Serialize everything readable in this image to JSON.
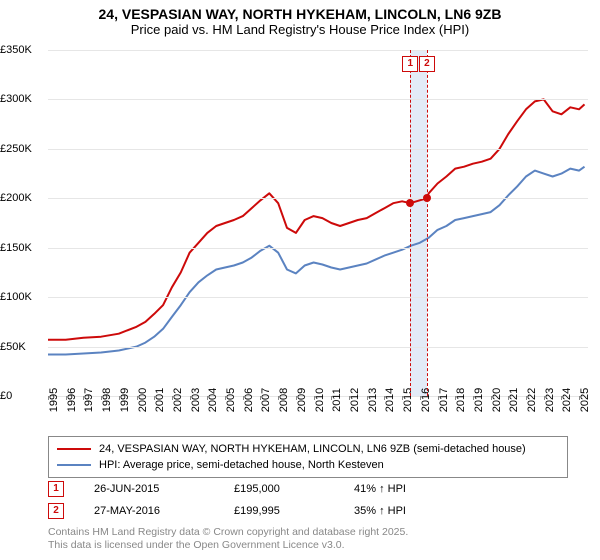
{
  "title": {
    "line1": "24, VESPASIAN WAY, NORTH HYKEHAM, LINCOLN, LN6 9ZB",
    "line2": "Price paid vs. HM Land Registry's House Price Index (HPI)",
    "fontsize_main": 14,
    "fontsize_sub": 13
  },
  "chart": {
    "type": "line",
    "background_color": "#ffffff",
    "grid_color": "#e6e6e6",
    "x": {
      "min": 1995,
      "max": 2025.5,
      "ticks": [
        1995,
        1996,
        1997,
        1998,
        1999,
        2000,
        2001,
        2002,
        2003,
        2004,
        2005,
        2006,
        2007,
        2008,
        2009,
        2010,
        2011,
        2012,
        2013,
        2014,
        2015,
        2016,
        2017,
        2018,
        2019,
        2020,
        2021,
        2022,
        2023,
        2024,
        2025
      ],
      "label_fontsize": 11
    },
    "y": {
      "min": 0,
      "max": 350000,
      "ticks": [
        0,
        50000,
        100000,
        150000,
        200000,
        250000,
        300000,
        350000
      ],
      "tick_labels": [
        "£0",
        "£50K",
        "£100K",
        "£150K",
        "£200K",
        "£250K",
        "£300K",
        "£350K"
      ],
      "label_fontsize": 11
    },
    "series": [
      {
        "id": "price_paid",
        "label": "24, VESPASIAN WAY, NORTH HYKEHAM, LINCOLN, LN6 9ZB (semi-detached house)",
        "color": "#cd0a0a",
        "line_width": 2,
        "xy": [
          [
            1995,
            57000
          ],
          [
            1996,
            57000
          ],
          [
            1997,
            59000
          ],
          [
            1998,
            60000
          ],
          [
            1999,
            63000
          ],
          [
            2000,
            70000
          ],
          [
            2000.5,
            75000
          ],
          [
            2001,
            83000
          ],
          [
            2001.5,
            92000
          ],
          [
            2002,
            110000
          ],
          [
            2002.5,
            125000
          ],
          [
            2003,
            145000
          ],
          [
            2003.5,
            155000
          ],
          [
            2004,
            165000
          ],
          [
            2004.5,
            172000
          ],
          [
            2005,
            175000
          ],
          [
            2005.5,
            178000
          ],
          [
            2006,
            182000
          ],
          [
            2006.5,
            190000
          ],
          [
            2007,
            198000
          ],
          [
            2007.5,
            205000
          ],
          [
            2008,
            195000
          ],
          [
            2008.5,
            170000
          ],
          [
            2009,
            165000
          ],
          [
            2009.5,
            178000
          ],
          [
            2010,
            182000
          ],
          [
            2010.5,
            180000
          ],
          [
            2011,
            175000
          ],
          [
            2011.5,
            172000
          ],
          [
            2012,
            175000
          ],
          [
            2012.5,
            178000
          ],
          [
            2013,
            180000
          ],
          [
            2013.5,
            185000
          ],
          [
            2014,
            190000
          ],
          [
            2014.5,
            195000
          ],
          [
            2015,
            197000
          ],
          [
            2015.46,
            195000
          ],
          [
            2016,
            198000
          ],
          [
            2016.4,
            199995
          ],
          [
            2016.5,
            205000
          ],
          [
            2017,
            215000
          ],
          [
            2017.5,
            222000
          ],
          [
            2018,
            230000
          ],
          [
            2018.5,
            232000
          ],
          [
            2019,
            235000
          ],
          [
            2019.5,
            237000
          ],
          [
            2020,
            240000
          ],
          [
            2020.5,
            250000
          ],
          [
            2021,
            265000
          ],
          [
            2021.5,
            278000
          ],
          [
            2022,
            290000
          ],
          [
            2022.5,
            298000
          ],
          [
            2023,
            300000
          ],
          [
            2023.5,
            288000
          ],
          [
            2024,
            285000
          ],
          [
            2024.5,
            292000
          ],
          [
            2025,
            290000
          ],
          [
            2025.3,
            295000
          ]
        ]
      },
      {
        "id": "hpi",
        "label": "HPI: Average price, semi-detached house, North Kesteven",
        "color": "#5b83c1",
        "line_width": 2,
        "xy": [
          [
            1995,
            42000
          ],
          [
            1996,
            42000
          ],
          [
            1997,
            43000
          ],
          [
            1998,
            44000
          ],
          [
            1999,
            46000
          ],
          [
            2000,
            50000
          ],
          [
            2000.5,
            54000
          ],
          [
            2001,
            60000
          ],
          [
            2001.5,
            68000
          ],
          [
            2002,
            80000
          ],
          [
            2002.5,
            92000
          ],
          [
            2003,
            105000
          ],
          [
            2003.5,
            115000
          ],
          [
            2004,
            122000
          ],
          [
            2004.5,
            128000
          ],
          [
            2005,
            130000
          ],
          [
            2005.5,
            132000
          ],
          [
            2006,
            135000
          ],
          [
            2006.5,
            140000
          ],
          [
            2007,
            147000
          ],
          [
            2007.5,
            152000
          ],
          [
            2008,
            145000
          ],
          [
            2008.5,
            128000
          ],
          [
            2009,
            124000
          ],
          [
            2009.5,
            132000
          ],
          [
            2010,
            135000
          ],
          [
            2010.5,
            133000
          ],
          [
            2011,
            130000
          ],
          [
            2011.5,
            128000
          ],
          [
            2012,
            130000
          ],
          [
            2012.5,
            132000
          ],
          [
            2013,
            134000
          ],
          [
            2013.5,
            138000
          ],
          [
            2014,
            142000
          ],
          [
            2014.5,
            145000
          ],
          [
            2015,
            148000
          ],
          [
            2015.5,
            152000
          ],
          [
            2016,
            155000
          ],
          [
            2016.5,
            160000
          ],
          [
            2017,
            168000
          ],
          [
            2017.5,
            172000
          ],
          [
            2018,
            178000
          ],
          [
            2018.5,
            180000
          ],
          [
            2019,
            182000
          ],
          [
            2019.5,
            184000
          ],
          [
            2020,
            186000
          ],
          [
            2020.5,
            193000
          ],
          [
            2021,
            203000
          ],
          [
            2021.5,
            212000
          ],
          [
            2022,
            222000
          ],
          [
            2022.5,
            228000
          ],
          [
            2023,
            225000
          ],
          [
            2023.5,
            222000
          ],
          [
            2024,
            225000
          ],
          [
            2024.5,
            230000
          ],
          [
            2025,
            228000
          ],
          [
            2025.3,
            232000
          ]
        ]
      }
    ],
    "event_band": {
      "x_start": 2015.46,
      "x_end": 2016.4,
      "color": "#b0c6e8",
      "opacity": 0.35
    },
    "sale_markers": [
      {
        "n": "1",
        "x": 2015.46,
        "y": 195000
      },
      {
        "n": "2",
        "x": 2016.4,
        "y": 199995
      }
    ]
  },
  "legend": {
    "border_color": "#888888",
    "fontsize": 11,
    "rows": [
      {
        "color": "#cd0a0a",
        "text": "24, VESPASIAN WAY, NORTH HYKEHAM, LINCOLN, LN6 9ZB (semi-detached house)"
      },
      {
        "color": "#5b83c1",
        "text": "HPI: Average price, semi-detached house, North Kesteven"
      }
    ]
  },
  "sales_table": {
    "fontsize": 11,
    "rows": [
      {
        "n": "1",
        "date": "26-JUN-2015",
        "price": "£195,000",
        "hpi": "41% ↑ HPI"
      },
      {
        "n": "2",
        "date": "27-MAY-2016",
        "price": "£199,995",
        "hpi": "35% ↑ HPI"
      }
    ]
  },
  "attribution": {
    "line1": "Contains HM Land Registry data © Crown copyright and database right 2025.",
    "line2": "This data is licensed under the Open Government Licence v3.0.",
    "color": "#888888",
    "fontsize": 10.5
  }
}
